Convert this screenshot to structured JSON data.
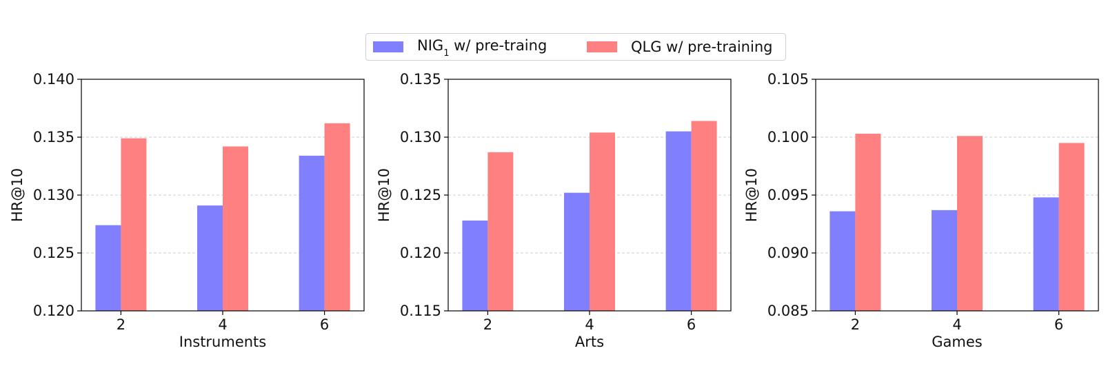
{
  "legend": {
    "items": [
      {
        "label_main": "NIG",
        "label_sub": "1",
        "label_rest": " w/ pre-traing",
        "color": "#8080ff"
      },
      {
        "label_main": "QLG w/ pre-training",
        "label_sub": "",
        "label_rest": "",
        "color": "#ff8080"
      }
    ]
  },
  "chart_data": [
    {
      "type": "bar",
      "xlabel": "Instruments",
      "ylabel": "HR@10",
      "categories": [
        "2",
        "4",
        "6"
      ],
      "ylim": [
        0.12,
        0.14
      ],
      "yticks": [
        "0.120",
        "0.125",
        "0.130",
        "0.135",
        "0.140"
      ],
      "grid": "horizontal dashed",
      "series": [
        {
          "name": "NIG1 w/ pre-traing",
          "color": "#8080ff",
          "values": [
            0.1274,
            0.1291,
            0.1334
          ]
        },
        {
          "name": "QLG w/ pre-training",
          "color": "#ff8080",
          "values": [
            0.1349,
            0.1342,
            0.1362
          ]
        }
      ]
    },
    {
      "type": "bar",
      "xlabel": "Arts",
      "ylabel": "HR@10",
      "categories": [
        "2",
        "4",
        "6"
      ],
      "ylim": [
        0.115,
        0.135
      ],
      "yticks": [
        "0.115",
        "0.120",
        "0.125",
        "0.130",
        "0.135"
      ],
      "grid": "horizontal dashed",
      "series": [
        {
          "name": "NIG1 w/ pre-traing",
          "color": "#8080ff",
          "values": [
            0.1228,
            0.1252,
            0.1305
          ]
        },
        {
          "name": "QLG w/ pre-training",
          "color": "#ff8080",
          "values": [
            0.1287,
            0.1304,
            0.1314
          ]
        }
      ]
    },
    {
      "type": "bar",
      "xlabel": "Games",
      "ylabel": "HR@10",
      "categories": [
        "2",
        "4",
        "6"
      ],
      "ylim": [
        0.085,
        0.105
      ],
      "yticks": [
        "0.085",
        "0.090",
        "0.095",
        "0.100",
        "0.105"
      ],
      "grid": "horizontal dashed",
      "series": [
        {
          "name": "NIG1 w/ pre-traing",
          "color": "#8080ff",
          "values": [
            0.0936,
            0.0937,
            0.0948
          ]
        },
        {
          "name": "QLG w/ pre-training",
          "color": "#ff8080",
          "values": [
            0.1003,
            0.1001,
            0.0995
          ]
        }
      ]
    }
  ]
}
